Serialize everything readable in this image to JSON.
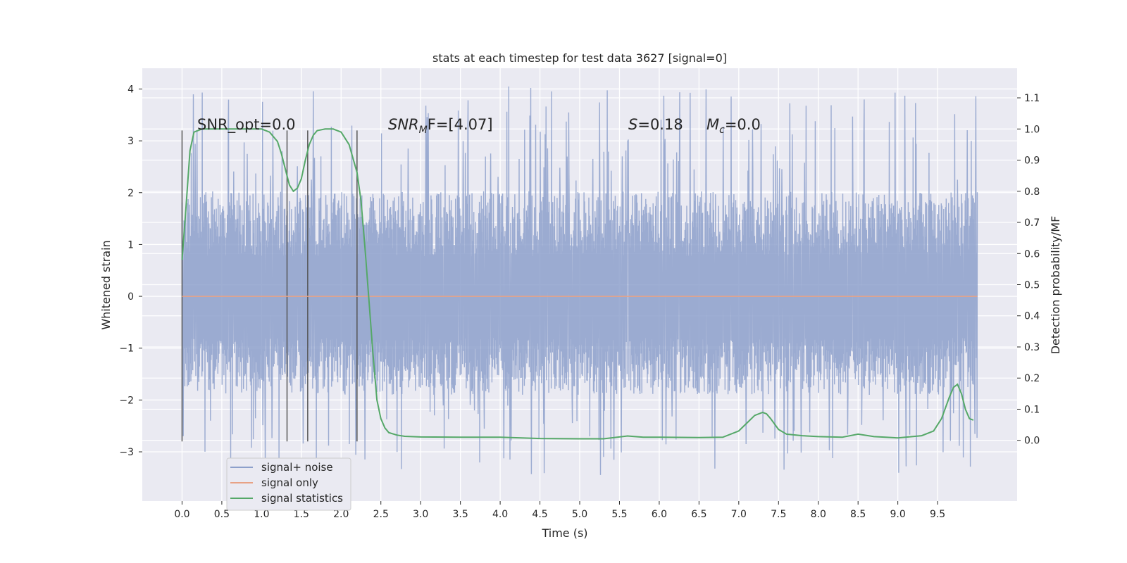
{
  "chart_data": {
    "type": "line",
    "title": "stats at each timestep for test data 3627 [signal=0]",
    "xlabel": "Time (s)",
    "ylabel": "Whitened strain",
    "y2label": "Detection probability/MF",
    "xlim": [
      -0.5,
      10.5
    ],
    "ylim": [
      -3.95,
      4.4
    ],
    "y2lim": [
      -0.195,
      1.195
    ],
    "grid": true,
    "legend_position": "bottom-left",
    "x_ticks": [
      "0.0",
      "0.5",
      "1.0",
      "1.5",
      "2.0",
      "2.5",
      "3.0",
      "3.5",
      "4.0",
      "4.5",
      "5.0",
      "5.5",
      "6.0",
      "6.5",
      "7.0",
      "7.5",
      "8.0",
      "8.5",
      "9.0",
      "9.5"
    ],
    "y_ticks": [
      "−3",
      "−2",
      "−1",
      "0",
      "1",
      "2",
      "3",
      "4"
    ],
    "y2_ticks": [
      "0.0",
      "0.1",
      "0.2",
      "0.3",
      "0.4",
      "0.5",
      "0.6",
      "0.7",
      "0.8",
      "0.9",
      "1.0",
      "1.1"
    ],
    "annotations": {
      "snr_opt": "SNR_opt=0.0",
      "snr_mf_italic": "SNR",
      "snr_mf_sub": "M",
      "snr_mf_rest": "F=[4.07]",
      "s_italic": "S",
      "s_rest": "=0.18",
      "mc_italic": "M",
      "mc_sub": "c",
      "mc_rest": "=0.0"
    },
    "vertical_markers": [
      0.0,
      1.32,
      1.58,
      2.2
    ],
    "series": [
      {
        "name": "signal+ noise",
        "color": "#8da0cb",
        "x_range": [
          0.0,
          10.0
        ],
        "envelope_core": [
          -1.0,
          1.4
        ],
        "spike_range": [
          -3.45,
          4.05
        ]
      },
      {
        "name": "signal only",
        "color": "#e8a285",
        "x": [
          0.0,
          10.0
        ],
        "y": [
          0.0,
          0.0
        ]
      },
      {
        "name": "signal statistics",
        "color": "#55a868",
        "axis": "right",
        "x": [
          0.0,
          0.05,
          0.1,
          0.15,
          0.25,
          0.4,
          0.6,
          0.8,
          1.0,
          1.1,
          1.2,
          1.25,
          1.3,
          1.35,
          1.4,
          1.45,
          1.5,
          1.55,
          1.6,
          1.65,
          1.7,
          1.8,
          1.9,
          2.0,
          2.1,
          2.2,
          2.25,
          2.3,
          2.35,
          2.4,
          2.45,
          2.5,
          2.55,
          2.6,
          2.7,
          2.8,
          3.0,
          3.5,
          4.0,
          4.5,
          5.0,
          5.3,
          5.6,
          5.8,
          6.0,
          6.5,
          6.8,
          7.0,
          7.1,
          7.2,
          7.3,
          7.35,
          7.4,
          7.5,
          7.6,
          7.8,
          8.0,
          8.3,
          8.5,
          8.7,
          9.0,
          9.3,
          9.45,
          9.55,
          9.65,
          9.7,
          9.75,
          9.8,
          9.85,
          9.9,
          9.95
        ],
        "y": [
          0.58,
          0.75,
          0.93,
          0.99,
          1.0,
          1.0,
          1.0,
          1.0,
          1.0,
          0.99,
          0.96,
          0.92,
          0.87,
          0.82,
          0.8,
          0.81,
          0.84,
          0.9,
          0.95,
          0.98,
          0.995,
          1.0,
          1.0,
          0.99,
          0.95,
          0.86,
          0.77,
          0.62,
          0.45,
          0.28,
          0.13,
          0.07,
          0.04,
          0.025,
          0.017,
          0.013,
          0.011,
          0.01,
          0.01,
          0.006,
          0.005,
          0.005,
          0.014,
          0.01,
          0.01,
          0.009,
          0.01,
          0.03,
          0.055,
          0.08,
          0.09,
          0.085,
          0.07,
          0.035,
          0.02,
          0.015,
          0.012,
          0.01,
          0.02,
          0.012,
          0.008,
          0.015,
          0.03,
          0.07,
          0.14,
          0.17,
          0.18,
          0.15,
          0.1,
          0.07,
          0.065
        ]
      }
    ]
  }
}
